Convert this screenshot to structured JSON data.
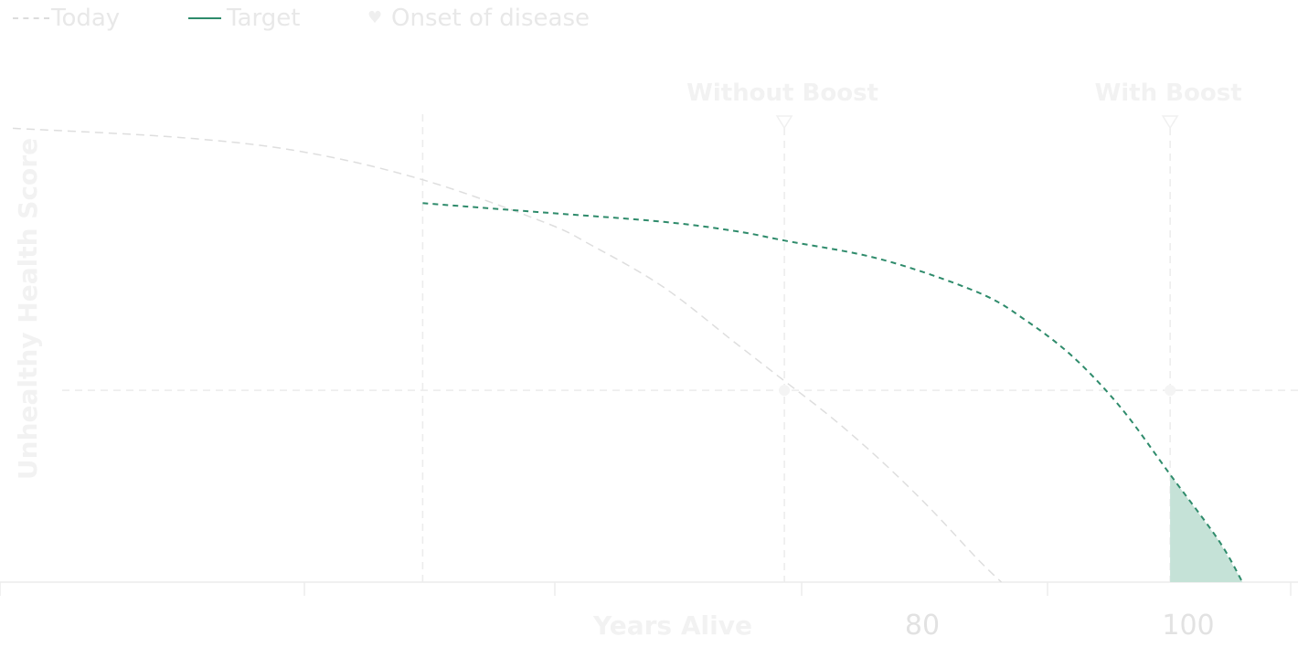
{
  "legend": {
    "today_label": "Today",
    "target_label": "Target",
    "onset_label": "Onset of disease",
    "onset_icon": "heart-icon"
  },
  "colors": {
    "today_line": "#dedede",
    "target_line": "#2e8b6b",
    "target_fill": "#c5e2d7",
    "grid": "#ececec",
    "tick_label": "#e2e2e2",
    "faint_text": "#f2f2f2"
  },
  "chart_data": {
    "type": "line",
    "xlabel": "Years Alive",
    "ylabel": "Unhealthy Health Score",
    "annotations": [
      "Without Boost",
      "With Boost"
    ],
    "x_tick_labels": [
      "80",
      "100"
    ],
    "series": [
      {
        "name": "Today",
        "style": "dashed",
        "x": [
          48,
          55,
          60,
          65,
          70,
          72,
          75,
          78,
          80,
          82,
          84,
          86,
          88,
          89
        ],
        "y": [
          0.97,
          0.95,
          0.92,
          0.86,
          0.77,
          0.72,
          0.63,
          0.51,
          0.43,
          0.35,
          0.26,
          0.16,
          0.05,
          0.0
        ]
      },
      {
        "name": "Target",
        "style": "dashed",
        "x": [
          65,
          70,
          75,
          78,
          80,
          84,
          88,
          90,
          92,
          94,
          96,
          98,
          99
        ],
        "y": [
          0.81,
          0.79,
          0.77,
          0.75,
          0.73,
          0.69,
          0.62,
          0.56,
          0.48,
          0.37,
          0.23,
          0.09,
          0.0
        ]
      }
    ],
    "markers": [
      {
        "label": "Without Boost",
        "x": 80
      },
      {
        "label": "With Boost",
        "x": 96
      }
    ],
    "threshold_y": 0.41,
    "vertical_reference_x": 65,
    "shaded_region": {
      "series": "Target",
      "from_x": 96,
      "to_x": 99
    },
    "xlim": [
      48,
      101
    ],
    "ylim": [
      0,
      1
    ],
    "grid": false,
    "legend_position": "top-left"
  }
}
